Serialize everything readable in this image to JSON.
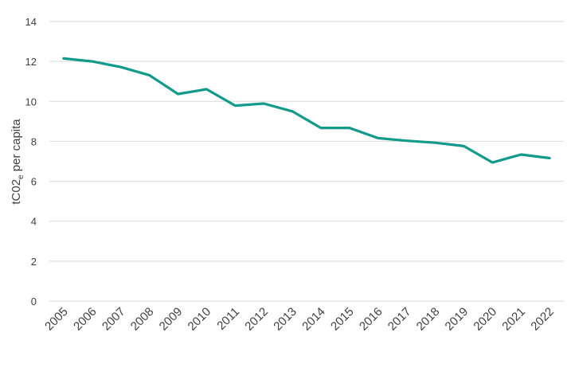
{
  "chart_data": {
    "type": "line",
    "title": "",
    "xlabel": "",
    "ylabel": {
      "main": "tC02",
      "subscript": "e",
      "suffix": " per capita"
    },
    "categories": [
      "2005",
      "2006",
      "2007",
      "2008",
      "2009",
      "2010",
      "2011",
      "2012",
      "2013",
      "2014",
      "2015",
      "2016",
      "2017",
      "2018",
      "2019",
      "2020",
      "2021",
      "2022"
    ],
    "values": [
      12.15,
      12.0,
      11.72,
      11.31,
      10.37,
      10.61,
      9.79,
      9.89,
      9.5,
      8.67,
      8.67,
      8.16,
      8.03,
      7.93,
      7.76,
      6.94,
      7.34,
      7.16
    ],
    "ylim": [
      0,
      14
    ],
    "yticks": [
      0,
      2,
      4,
      6,
      8,
      10,
      12,
      14
    ],
    "grid": true,
    "legend": "none",
    "line_color": "#129a8b",
    "grid_color": "#d9d9d9"
  }
}
